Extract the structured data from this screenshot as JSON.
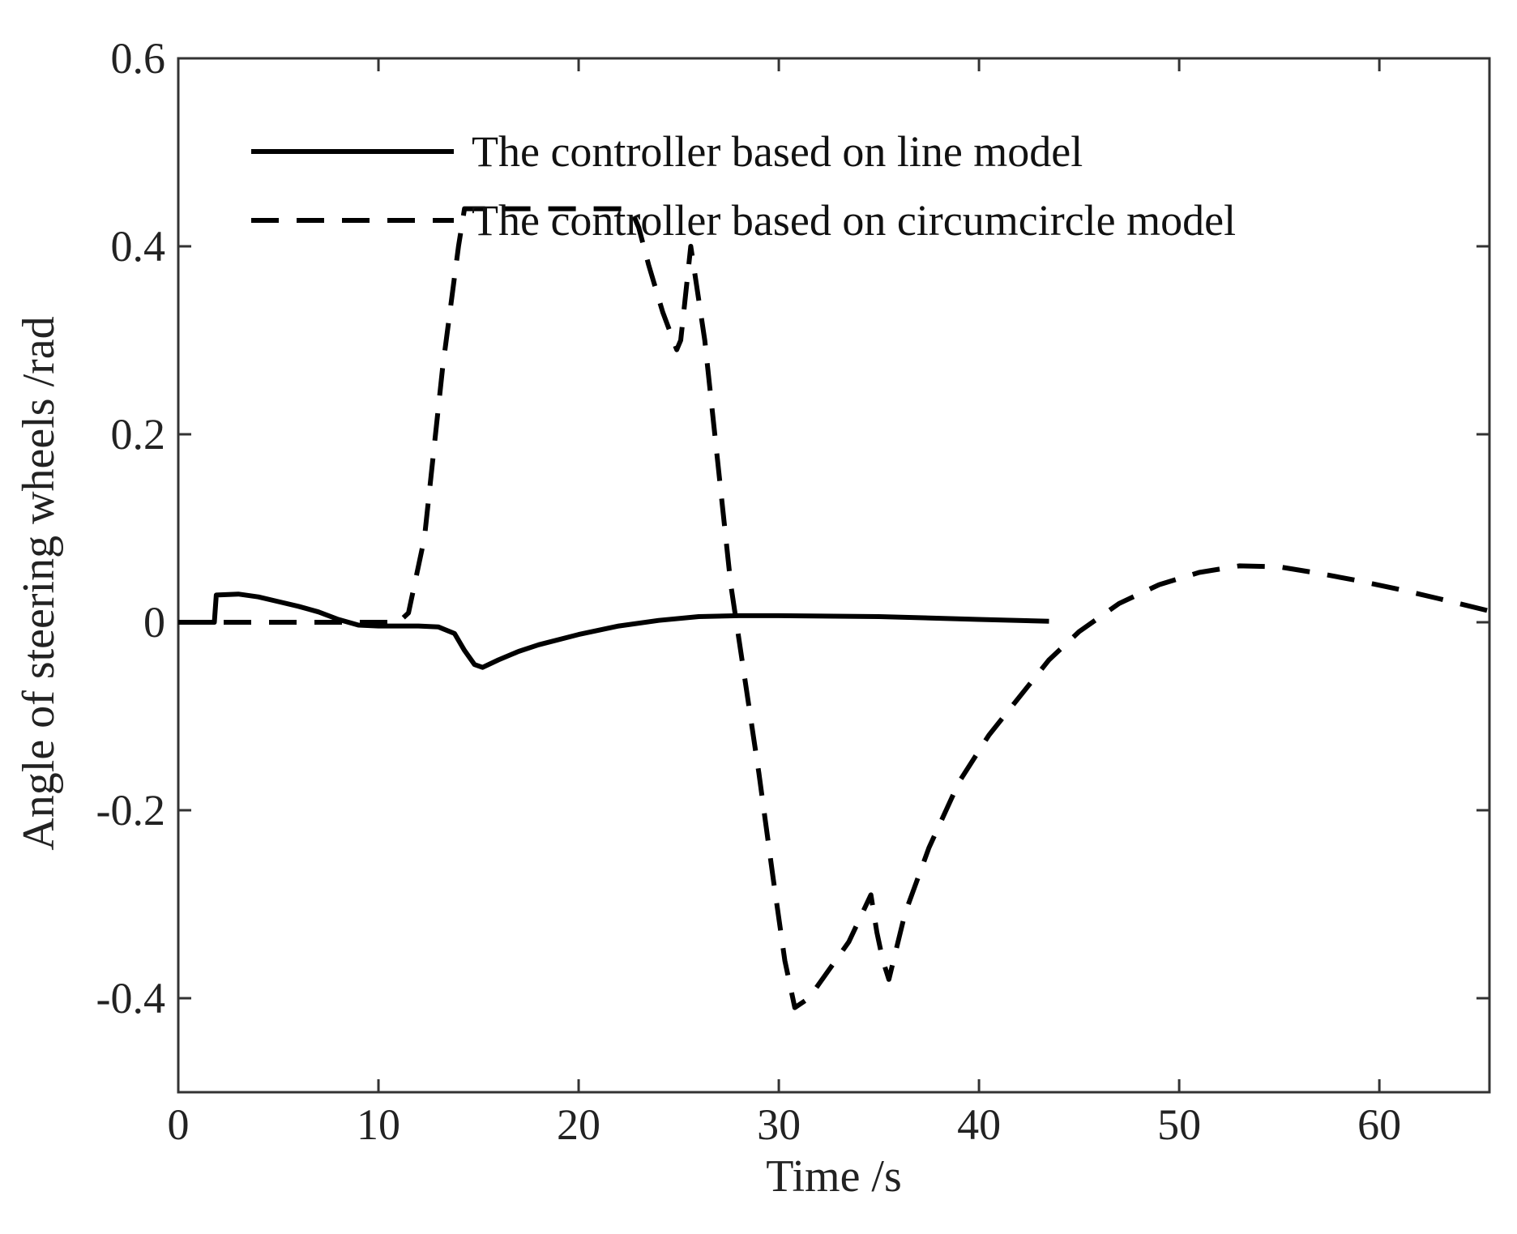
{
  "chart_data": {
    "type": "line",
    "title": "",
    "xlabel": "Time /s",
    "ylabel": "Angle of steering wheels /rad",
    "xlim": [
      0,
      65.5
    ],
    "ylim": [
      -0.5,
      0.6
    ],
    "xticks": [
      0,
      10,
      20,
      30,
      40,
      50,
      60
    ],
    "xtick_labels": [
      "0",
      "10",
      "20",
      "30",
      "40",
      "50",
      "60"
    ],
    "yticks": [
      -0.4,
      -0.2,
      0,
      0.2,
      0.4,
      0.6
    ],
    "ytick_labels": [
      "-0.4",
      "-0.2",
      "0",
      "0.2",
      "0.4",
      "0.6"
    ],
    "grid": false,
    "legend_position": "top-left",
    "series": [
      {
        "name": "The controller based on line model",
        "style": "solid",
        "color": "#000000",
        "x": [
          0,
          1.8,
          1.9,
          3,
          4,
          5,
          6,
          7,
          8,
          9,
          10,
          11,
          12,
          13,
          13.8,
          14.3,
          14.8,
          15.2,
          16,
          17,
          18,
          20,
          22,
          24,
          26,
          28,
          30,
          35,
          40,
          43.5
        ],
        "y": [
          0,
          0,
          0.029,
          0.03,
          0.027,
          0.022,
          0.017,
          0.011,
          0.003,
          -0.003,
          -0.004,
          -0.004,
          -0.004,
          -0.005,
          -0.012,
          -0.03,
          -0.045,
          -0.048,
          -0.04,
          -0.031,
          -0.024,
          -0.013,
          -0.004,
          0.002,
          0.006,
          0.007,
          0.007,
          0.006,
          0.003,
          0.001
        ]
      },
      {
        "name": "The controller based on circumcircle model",
        "style": "dashed",
        "color": "#000000",
        "x": [
          0,
          11,
          11.5,
          12.3,
          13.2,
          14,
          14.3,
          16,
          18,
          20,
          22,
          22.6,
          23,
          23.5,
          24.2,
          24.9,
          25.1,
          25.3,
          25.6,
          26.3,
          27,
          27.6,
          28.3,
          29,
          29.7,
          30.3,
          30.8,
          31.5,
          32.5,
          33.5,
          34.6,
          34.9,
          35.2,
          35.5,
          36.3,
          37.5,
          39,
          40.5,
          42,
          43.5,
          45,
          47,
          49,
          51,
          53,
          55,
          57,
          59,
          61,
          63,
          65.5
        ],
        "y": [
          0,
          0,
          0.01,
          0.09,
          0.27,
          0.4,
          0.44,
          0.44,
          0.44,
          0.44,
          0.44,
          0.44,
          0.42,
          0.38,
          0.33,
          0.29,
          0.3,
          0.34,
          0.4,
          0.3,
          0.16,
          0.04,
          -0.06,
          -0.16,
          -0.27,
          -0.36,
          -0.41,
          -0.4,
          -0.37,
          -0.34,
          -0.29,
          -0.33,
          -0.36,
          -0.38,
          -0.31,
          -0.24,
          -0.17,
          -0.12,
          -0.08,
          -0.04,
          -0.01,
          0.02,
          0.04,
          0.053,
          0.06,
          0.059,
          0.052,
          0.044,
          0.035,
          0.025,
          0.012
        ]
      }
    ]
  }
}
